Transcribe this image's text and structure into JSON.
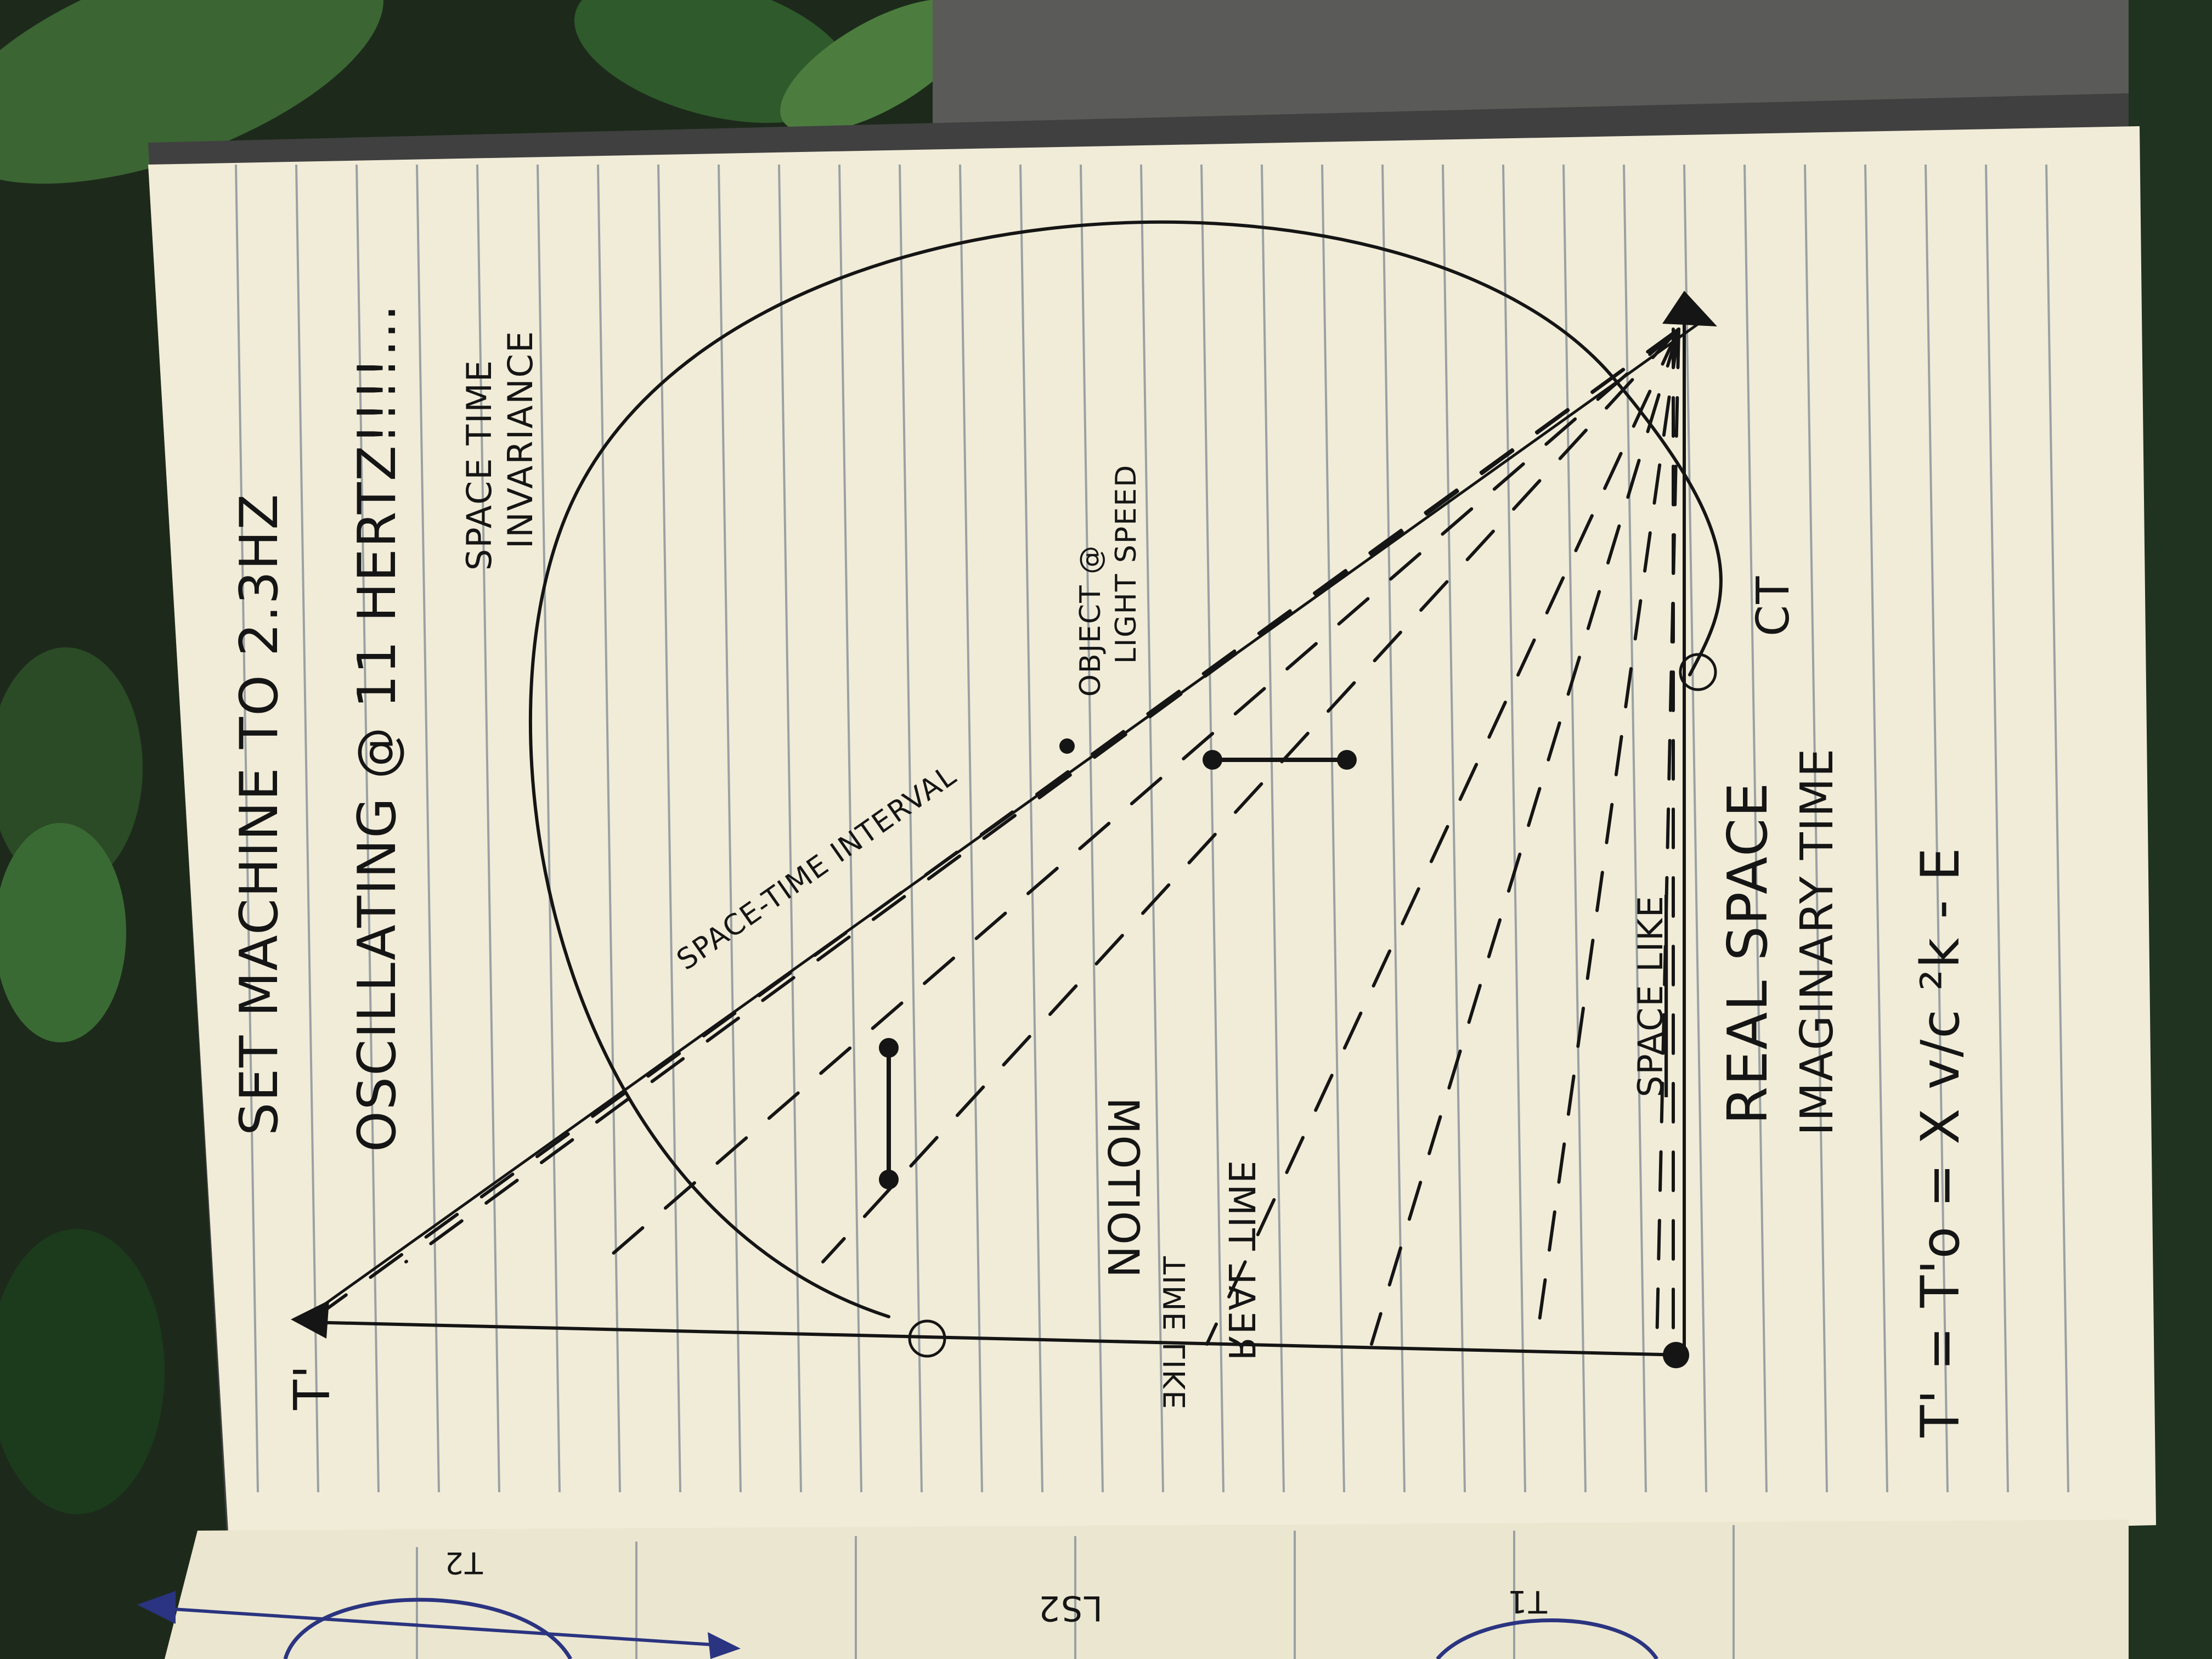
{
  "colors": {
    "page": "#f1ecd8",
    "rule_line": "#9aa1a4",
    "ink": "#151515",
    "blue_ink": "#2a3480",
    "foliage_dark": "#17301a",
    "foliage_light": "#3d6a35",
    "notebook_cover": "#3b3b3b"
  },
  "notes": {
    "line1": "SET MACHINE TO 2.3HZ",
    "line2": "OSCILLATING @ 11 HERTZ!!!!...",
    "invariance": [
      "SPACE TIME",
      "INVARIANCE"
    ],
    "interval": "SPACE-TIME INTERVAL",
    "object": [
      "OBJECT @",
      "LIGHT SPEED"
    ],
    "motion": "MOTION",
    "time_like": "TIME LIKE",
    "real_time": "REAL TIME",
    "t_prime": "T'",
    "space_like": "SPACE LIKE",
    "real_space": "REAL SPACE",
    "imaginary_time": "IMAGINARY TIME",
    "ct": "CT",
    "formula": "T' = T'o = X v/c ²k - E"
  },
  "facing_page": {
    "labels": [
      "T2",
      "LS2",
      "T1"
    ]
  },
  "icons": [
    "leaf-icon",
    "arrowhead-icon",
    "dot-icon"
  ]
}
